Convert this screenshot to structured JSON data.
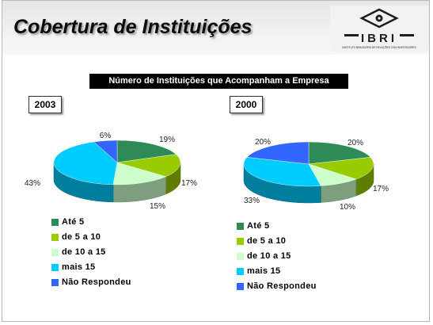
{
  "header": {
    "title": "Cobertura de Instituições",
    "logo_text": "IBRI",
    "logo_tagline": "INSTITUTO BRASILEIRO DE RELAÇÕES COM INVESTIDORES"
  },
  "subtitle": "Número de Instituições que Acompanham a Empresa",
  "colors": {
    "ate5": "#2e8b57",
    "de5a10": "#99cc00",
    "de10a15": "#ccffcc",
    "mais15": "#00ccff",
    "nao_respondeu": "#3366ff"
  },
  "chart_data": [
    {
      "type": "pie",
      "year_label": "2003",
      "categories": [
        "Até 5",
        "de 5 a 10",
        "de 10 a 15",
        "mais 15",
        "Não Respondeu"
      ],
      "values": [
        19,
        17,
        15,
        43,
        6
      ],
      "value_labels": [
        "19%",
        "17%",
        "15%",
        "43%",
        "6%"
      ],
      "legend": [
        "Até 5",
        "de 5 a 10",
        "de 10 a 15",
        "mais 15",
        "Não Respondeu"
      ],
      "legend_placement": "bottom-left"
    },
    {
      "type": "pie",
      "year_label": "2000",
      "categories": [
        "Até 5",
        "de 5 a 10",
        "de 10 a 15",
        "mais 15",
        "Não Respondeu"
      ],
      "values": [
        20,
        17,
        10,
        33,
        20
      ],
      "value_labels": [
        "20%",
        "17%",
        "10%",
        "33%",
        "20%"
      ],
      "legend": [
        "Até 5",
        "de 5 a 10",
        "de 10 a 15",
        "mais 15",
        "Não Respondeu"
      ],
      "legend_placement": "bottom-right"
    }
  ]
}
